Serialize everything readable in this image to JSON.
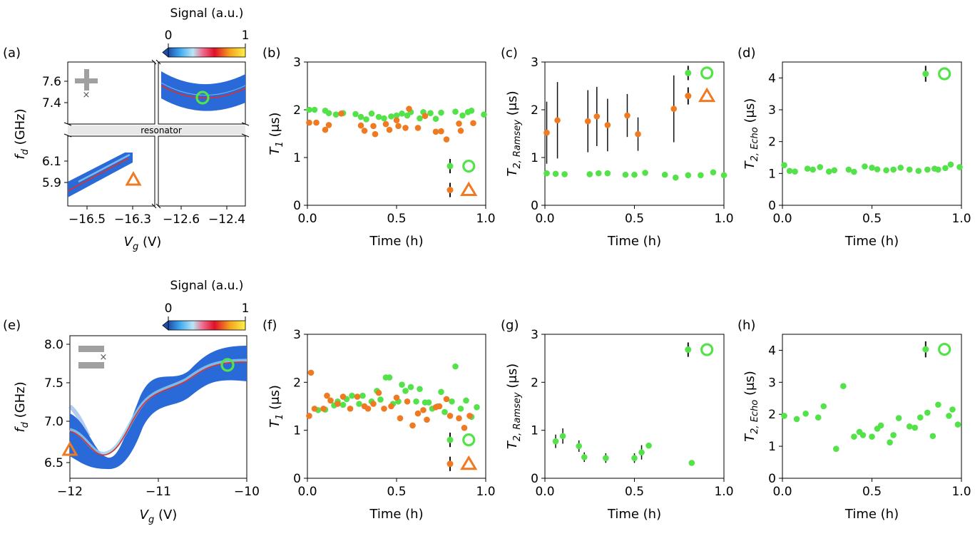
{
  "colors": {
    "green": "#54e24a",
    "orange": "#f07a22",
    "map_blue": "#2a69d8",
    "gray": "#a0a0a0",
    "resonator": "#e8e8e8"
  },
  "colorbar": {
    "title": "Signal (a.u.)",
    "tick_min": "0",
    "tick_max": "1"
  },
  "panel_labels": [
    "(a)",
    "(b)",
    "(c)",
    "(d)",
    "(e)",
    "(f)",
    "(g)",
    "(h)"
  ],
  "axis_text": {
    "time": "Time (h)",
    "fd": "f",
    "fd_sub": "d",
    "fd_unit": " (GHz)",
    "vg": "V",
    "vg_sub": "g",
    "vg_unit": " (V)",
    "t1": "T",
    "t1_sub": "1",
    "t1_unit": " (μs)",
    "t2r": "T",
    "t2r_sub": "2, Ramsey",
    "t2r_unit": " (μs)",
    "t2e": "T",
    "t2e_sub": "2, Echo",
    "t2e_unit": " (μs)"
  },
  "resonator_label": "resonator",
  "chart_data": [
    {
      "id": "a",
      "type": "heatmap",
      "xlabel": "V_g (V)",
      "ylabel": "f_d (GHz)",
      "x_ticks": [
        "−16.5",
        "−16.3",
        "−12.6",
        "−12.4"
      ],
      "y_ticks_upper": [
        "7.6",
        "7.4"
      ],
      "y_ticks_lower": [
        "6.1",
        "5.9"
      ],
      "annotation": "resonator",
      "markers": [
        {
          "shape": "circle",
          "x": -12.5,
          "y": 7.42
        },
        {
          "shape": "triangle",
          "x": -16.3,
          "y": 5.9
        }
      ]
    },
    {
      "id": "b",
      "type": "scatter",
      "title": "",
      "xlabel": "Time (h)",
      "ylabel": "T_1 (μs)",
      "xlim": [
        0,
        1
      ],
      "ylim": [
        0,
        3
      ],
      "x_ticks": [
        "0.0",
        "0.5",
        "1.0"
      ],
      "y_ticks": [
        "0",
        "1",
        "2",
        "3"
      ],
      "series": [
        {
          "name": "circle",
          "color": "green",
          "x": [
            0.01,
            0.04,
            0.1,
            0.12,
            0.16,
            0.2,
            0.27,
            0.3,
            0.33,
            0.36,
            0.4,
            0.43,
            0.47,
            0.5,
            0.53,
            0.56,
            0.58,
            0.63,
            0.65,
            0.69,
            0.72,
            0.75,
            0.83,
            0.87,
            0.9,
            0.92,
            0.99
          ],
          "y": [
            2.0,
            2.0,
            1.98,
            1.93,
            1.9,
            1.93,
            1.91,
            1.85,
            1.8,
            1.92,
            1.85,
            1.82,
            1.86,
            1.88,
            1.92,
            1.88,
            1.95,
            1.82,
            1.95,
            1.93,
            1.81,
            1.94,
            1.96,
            1.88,
            1.95,
            1.98,
            1.9
          ]
        },
        {
          "name": "triangle",
          "color": "orange",
          "x": [
            0.01,
            0.05,
            0.1,
            0.12,
            0.19,
            0.3,
            0.32,
            0.37,
            0.38,
            0.44,
            0.46,
            0.5,
            0.51,
            0.55,
            0.57,
            0.62,
            0.66,
            0.72,
            0.75,
            0.78,
            0.85,
            0.86,
            0.93
          ],
          "y": [
            1.73,
            1.73,
            1.58,
            1.68,
            1.92,
            1.67,
            1.56,
            1.66,
            1.49,
            1.7,
            1.58,
            1.78,
            1.66,
            1.62,
            2.02,
            1.62,
            1.87,
            1.54,
            1.55,
            1.38,
            1.71,
            1.56,
            1.72
          ]
        }
      ],
      "legend": [
        {
          "color": "green",
          "y": 0.82,
          "err": 0.15
        },
        {
          "color": "orange",
          "y": 0.32,
          "err": 0.15
        }
      ]
    },
    {
      "id": "c",
      "type": "scatter",
      "xlabel": "Time (h)",
      "ylabel": "T_2,Ramsey (μs)",
      "xlim": [
        0,
        1
      ],
      "ylim": [
        0,
        3
      ],
      "x_ticks": [
        "0.0",
        "0.5",
        "1.0"
      ],
      "y_ticks": [
        "0",
        "1",
        "2",
        "3"
      ],
      "series": [
        {
          "name": "circle",
          "color": "green",
          "x": [
            0.01,
            0.06,
            0.11,
            0.25,
            0.3,
            0.35,
            0.45,
            0.5,
            0.56,
            0.67,
            0.73,
            0.8,
            0.87,
            0.94,
            1.0
          ],
          "y": [
            0.67,
            0.66,
            0.65,
            0.65,
            0.67,
            0.67,
            0.64,
            0.64,
            0.68,
            0.64,
            0.58,
            0.63,
            0.63,
            0.69,
            0.63
          ],
          "err": [
            0,
            0,
            0,
            0,
            0,
            0,
            0,
            0,
            0,
            0,
            0,
            0,
            0,
            0,
            0
          ]
        },
        {
          "name": "triangle",
          "color": "orange",
          "x": [
            0.01,
            0.07,
            0.24,
            0.29,
            0.35,
            0.46,
            0.52,
            0.72
          ],
          "y": [
            1.52,
            1.78,
            1.76,
            1.86,
            1.68,
            1.88,
            1.49,
            2.02
          ],
          "err": [
            0.65,
            0.8,
            0.65,
            0.62,
            0.55,
            0.45,
            0.35,
            0.7
          ]
        }
      ],
      "legend": [
        {
          "color": "green",
          "y": 2.77,
          "err": 0.15
        },
        {
          "color": "orange",
          "y": 2.29,
          "err": 0.18
        }
      ]
    },
    {
      "id": "d",
      "type": "scatter",
      "xlabel": "Time (h)",
      "ylabel": "T_2,Echo (μs)",
      "xlim": [
        0,
        1
      ],
      "ylim": [
        0,
        4.5
      ],
      "x_ticks": [
        "0.0",
        "0.5",
        "1.0"
      ],
      "y_ticks": [
        "0",
        "1",
        "2",
        "3",
        "4"
      ],
      "series": [
        {
          "name": "circle",
          "color": "green",
          "x": [
            0.01,
            0.04,
            0.07,
            0.14,
            0.17,
            0.21,
            0.26,
            0.29,
            0.37,
            0.4,
            0.46,
            0.5,
            0.53,
            0.58,
            0.62,
            0.66,
            0.71,
            0.76,
            0.81,
            0.85,
            0.87,
            0.91,
            0.94,
            0.99
          ],
          "y": [
            1.26,
            1.08,
            1.06,
            1.15,
            1.12,
            1.2,
            1.06,
            1.1,
            1.12,
            1.05,
            1.22,
            1.18,
            1.13,
            1.1,
            1.12,
            1.18,
            1.12,
            1.08,
            1.12,
            1.15,
            1.12,
            1.17,
            1.28,
            1.2
          ]
        }
      ],
      "legend": [
        {
          "color": "green",
          "y": 4.13,
          "err": 0.25
        }
      ]
    },
    {
      "id": "e",
      "type": "heatmap",
      "xlabel": "V_g (V)",
      "ylabel": "f_d (GHz)",
      "xlim": [
        -12,
        -10
      ],
      "ylim": [
        6.3,
        8.15
      ],
      "x_ticks": [
        "−12",
        "−11",
        "−10"
      ],
      "y_ticks": [
        "6.5",
        "7.0",
        "7.5",
        "8.0"
      ],
      "markers": [
        {
          "shape": "circle",
          "x": -10.2,
          "y": 7.72
        },
        {
          "shape": "triangle",
          "x": -12.0,
          "y": 6.65
        }
      ]
    },
    {
      "id": "f",
      "type": "scatter",
      "xlabel": "Time (h)",
      "ylabel": "T_1 (μs)",
      "xlim": [
        0,
        1
      ],
      "ylim": [
        0,
        3
      ],
      "x_ticks": [
        "0.0",
        "0.5",
        "1.0"
      ],
      "y_ticks": [
        "0",
        "1",
        "2",
        "3"
      ],
      "series": [
        {
          "name": "circle",
          "color": "green",
          "x": [
            0.06,
            0.1,
            0.15,
            0.17,
            0.2,
            0.22,
            0.25,
            0.29,
            0.31,
            0.36,
            0.39,
            0.41,
            0.44,
            0.46,
            0.48,
            0.51,
            0.53,
            0.55,
            0.58,
            0.61,
            0.63,
            0.66,
            0.68,
            0.7,
            0.73,
            0.75,
            0.77,
            0.81,
            0.83,
            0.86,
            0.89,
            0.92,
            0.95
          ],
          "y": [
            1.42,
            1.43,
            1.52,
            1.6,
            1.53,
            1.65,
            1.72,
            1.55,
            1.72,
            1.6,
            1.82,
            1.64,
            2.1,
            2.1,
            1.55,
            1.6,
            1.95,
            1.82,
            1.9,
            1.6,
            1.86,
            1.58,
            1.58,
            1.45,
            1.5,
            1.8,
            1.38,
            1.6,
            2.33,
            1.45,
            1.62,
            1.28,
            1.48
          ]
        },
        {
          "name": "triangle",
          "color": "orange",
          "x": [
            0.01,
            0.02,
            0.04,
            0.09,
            0.11,
            0.13,
            0.17,
            0.2,
            0.24,
            0.28,
            0.32,
            0.34,
            0.37,
            0.4,
            0.43,
            0.47,
            0.5,
            0.52,
            0.56,
            0.59,
            0.62,
            0.65,
            0.67,
            0.72,
            0.74,
            0.78,
            0.8,
            0.85,
            0.88,
            0.91
          ],
          "y": [
            1.3,
            2.2,
            1.45,
            1.45,
            1.72,
            1.62,
            1.55,
            1.7,
            1.45,
            1.7,
            1.5,
            1.45,
            1.55,
            1.78,
            1.45,
            1.5,
            1.68,
            1.25,
            1.6,
            1.1,
            1.35,
            1.42,
            1.22,
            1.48,
            1.5,
            1.65,
            1.3,
            1.25,
            1.05,
            1.3
          ]
        }
      ],
      "legend": [
        {
          "color": "green",
          "y": 0.8,
          "err": 0.15
        },
        {
          "color": "orange",
          "y": 0.3,
          "err": 0.15
        }
      ]
    },
    {
      "id": "g",
      "type": "scatter",
      "xlabel": "Time (h)",
      "ylabel": "T_2,Ramsey (μs)",
      "xlim": [
        0,
        1
      ],
      "ylim": [
        0,
        3
      ],
      "x_ticks": [
        "0.0",
        "0.5",
        "1.0"
      ],
      "y_ticks": [
        "0",
        "1",
        "2",
        "3"
      ],
      "series": [
        {
          "name": "circle",
          "color": "green",
          "x": [
            0.06,
            0.1,
            0.19,
            0.22,
            0.34,
            0.5,
            0.54,
            0.58,
            0.82
          ],
          "y": [
            0.77,
            0.88,
            0.67,
            0.44,
            0.42,
            0.42,
            0.54,
            0.68,
            0.32
          ],
          "err": [
            0.14,
            0.16,
            0.12,
            0.1,
            0.1,
            0.1,
            0.15,
            0,
            0
          ]
        }
      ],
      "legend": [
        {
          "color": "green",
          "y": 2.68,
          "err": 0.15
        }
      ]
    },
    {
      "id": "h",
      "type": "scatter",
      "xlabel": "Time (h)",
      "ylabel": "T_2,Echo (μs)",
      "xlim": [
        0,
        1
      ],
      "ylim": [
        0,
        4.5
      ],
      "x_ticks": [
        "0.0",
        "0.5",
        "1.0"
      ],
      "y_ticks": [
        "0",
        "1",
        "2",
        "3",
        "4"
      ],
      "series": [
        {
          "name": "circle",
          "color": "green",
          "x": [
            0.01,
            0.08,
            0.13,
            0.2,
            0.23,
            0.3,
            0.34,
            0.4,
            0.43,
            0.45,
            0.5,
            0.53,
            0.55,
            0.6,
            0.62,
            0.65,
            0.71,
            0.74,
            0.77,
            0.81,
            0.84,
            0.87,
            0.93,
            0.95,
            0.98
          ],
          "y": [
            1.95,
            1.85,
            2.02,
            1.9,
            2.25,
            0.92,
            2.88,
            1.3,
            1.45,
            1.35,
            1.3,
            1.55,
            1.65,
            1.12,
            1.35,
            1.88,
            1.62,
            1.58,
            1.9,
            2.05,
            1.32,
            2.3,
            1.95,
            2.15,
            1.68
          ]
        }
      ],
      "legend": [
        {
          "color": "green",
          "y": 4.03,
          "err": 0.25
        }
      ]
    }
  ]
}
